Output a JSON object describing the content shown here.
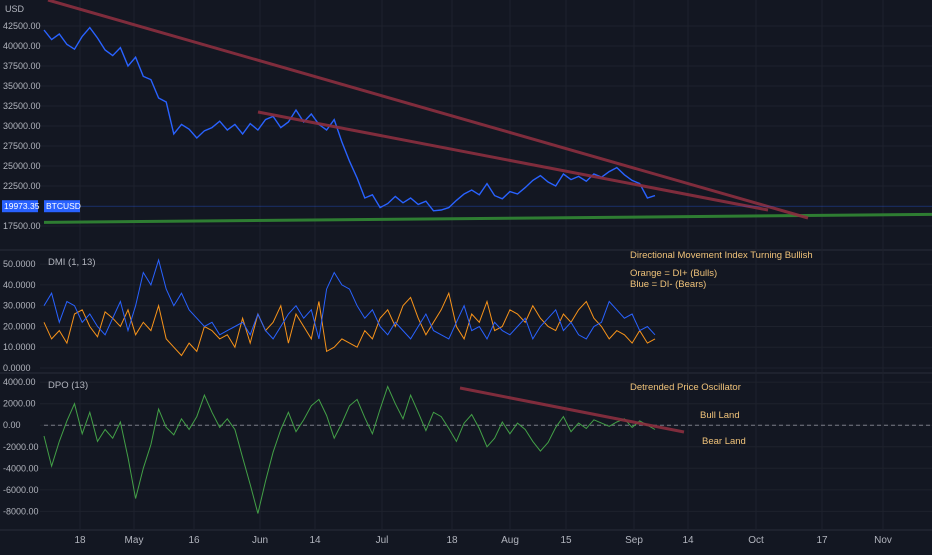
{
  "colors": {
    "background": "#131722",
    "grid": "#1e222d",
    "axis_text": "#b2b5be",
    "price_line": "#2962ff",
    "trendline": "#8c2f3f",
    "support": "#2e7d32",
    "di_plus": "#f7931a",
    "di_minus": "#2962ff",
    "dpo": "#43a047",
    "annotation": "#f0c37a",
    "price_tag": "#2962ff"
  },
  "time_axis": {
    "labels": [
      "18",
      "May",
      "16",
      "Jun",
      "14",
      "Jul",
      "18",
      "Aug",
      "15",
      "Sep",
      "14",
      "Oct",
      "17",
      "Nov"
    ]
  },
  "price_tag": {
    "value": "19973.35",
    "symbol": "BTCUSD"
  },
  "chart_data": [
    {
      "type": "line",
      "pane": "price",
      "ylabel": "USD",
      "y_ticks": [
        "42500.00",
        "40000.00",
        "37500.00",
        "35000.00",
        "32500.00",
        "30000.00",
        "27500.00",
        "25000.00",
        "22500.00",
        "17500.00"
      ],
      "ylim": [
        16500,
        44500
      ],
      "series": [
        {
          "name": "BTCUSD",
          "x": [
            0,
            2,
            4,
            6,
            8,
            10,
            12,
            14,
            16,
            18,
            20,
            22,
            24,
            26,
            28,
            30,
            32,
            34,
            36,
            38,
            40,
            42,
            44,
            46,
            48,
            50,
            52,
            54,
            56,
            58,
            60,
            62,
            64,
            66,
            68,
            70,
            72,
            74,
            76,
            78,
            80,
            82,
            84,
            86,
            88,
            90,
            92,
            94,
            96,
            98,
            100,
            102,
            104,
            106,
            108,
            110,
            112,
            114,
            116,
            118,
            120,
            122,
            124,
            126,
            128,
            130,
            132,
            134,
            136,
            138,
            140,
            142,
            144,
            146,
            148,
            150,
            152,
            154,
            156,
            158,
            160
          ],
          "values": [
            42000,
            40800,
            41500,
            40200,
            39600,
            41200,
            42300,
            41000,
            39500,
            38800,
            39800,
            37500,
            38600,
            36200,
            35800,
            33500,
            33000,
            29000,
            30200,
            29600,
            28500,
            29400,
            29800,
            30600,
            29500,
            30200,
            29000,
            30300,
            29500,
            30800,
            31200,
            29800,
            30500,
            32000,
            30500,
            31500,
            30200,
            29500,
            30800,
            28000,
            25600,
            23500,
            21000,
            21400,
            19800,
            20300,
            21200,
            20400,
            21000,
            20200,
            20600,
            19400,
            19500,
            19800,
            20700,
            21500,
            22000,
            21400,
            22800,
            21300,
            20900,
            21800,
            21500,
            22300,
            23200,
            23800,
            23000,
            22500,
            24000,
            23300,
            23700,
            23100,
            24000,
            23600,
            24300,
            24800,
            23900,
            23200,
            22800,
            21000,
            21300
          ],
          "x_note": "values continue to Sep"
        }
      ],
      "trendlines": [
        {
          "name": "",
          "from": [
            36400,
            44500
          ],
          "to": [
            20100,
            18300
          ]
        },
        {
          "name": "",
          "from": [
            32500,
            31500
          ],
          "to": [
            20100,
            19400
          ]
        }
      ],
      "support_level": 18200
    },
    {
      "type": "line",
      "pane": "dmi",
      "title": "DMI (1, 13)",
      "y_ticks": [
        "50.0000",
        "40.0000",
        "30.0000",
        "20.0000",
        "10.0000",
        "0.0000"
      ],
      "ylim": [
        0,
        52
      ],
      "annotations": [
        "Directional Movement Index Turning Bullish",
        "Orange = DI+ (Bulls)",
        "Blue = DI- (Bears)"
      ],
      "series": [
        {
          "name": "DI+",
          "color_key": "di_plus",
          "values": [
            22,
            14,
            18,
            12,
            26,
            28,
            20,
            15,
            27,
            24,
            20,
            28,
            16,
            22,
            18,
            30,
            14,
            10,
            6,
            12,
            8,
            20,
            18,
            14,
            16,
            10,
            24,
            12,
            26,
            18,
            22,
            30,
            12,
            26,
            20,
            14,
            32,
            8,
            10,
            14,
            12,
            10,
            18,
            14,
            24,
            28,
            20,
            30,
            34,
            24,
            16,
            22,
            28,
            36,
            20,
            14,
            26,
            22,
            32,
            18,
            20,
            28,
            26,
            22,
            30,
            24,
            20,
            18,
            26,
            22,
            28,
            32,
            24,
            20,
            14,
            18,
            16,
            12,
            18,
            12,
            14
          ]
        },
        {
          "name": "DI-",
          "color_key": "di_minus",
          "values": [
            30,
            36,
            22,
            32,
            30,
            22,
            26,
            20,
            16,
            24,
            32,
            18,
            30,
            46,
            40,
            52,
            38,
            30,
            36,
            28,
            24,
            20,
            22,
            16,
            18,
            20,
            22,
            16,
            26,
            18,
            14,
            20,
            26,
            30,
            24,
            28,
            14,
            38,
            46,
            40,
            38,
            30,
            24,
            28,
            20,
            16,
            22,
            18,
            14,
            20,
            26,
            18,
            16,
            14,
            22,
            30,
            18,
            20,
            14,
            22,
            18,
            16,
            20,
            24,
            14,
            20,
            24,
            28,
            18,
            22,
            16,
            14,
            20,
            22,
            32,
            28,
            24,
            26,
            18,
            20,
            16
          ]
        }
      ]
    },
    {
      "type": "line",
      "pane": "dpo",
      "title": "DPO (13)",
      "y_ticks": [
        "4000.00",
        "2000.00",
        "0.00",
        "-2000.00",
        "-4000.00",
        "-6000.00",
        "-8000.00"
      ],
      "ylim": [
        -8800,
        4200
      ],
      "annotations": [
        "Detrended Price Oscillator",
        "Bull Land",
        "Bear Land"
      ],
      "series": [
        {
          "name": "DPO",
          "color_key": "dpo",
          "values": [
            -1000,
            -3800,
            -1500,
            400,
            2000,
            -800,
            1200,
            -1500,
            -400,
            -1200,
            300,
            -3000,
            -6800,
            -4000,
            -1800,
            1500,
            -200,
            -900,
            600,
            -400,
            800,
            2800,
            1200,
            -200,
            600,
            -400,
            -3000,
            -5500,
            -8200,
            -5200,
            -2500,
            -400,
            1200,
            -600,
            500,
            1800,
            2400,
            900,
            -1200,
            200,
            1800,
            2400,
            700,
            -800,
            1500,
            3600,
            2000,
            600,
            2800,
            1200,
            -500,
            1200,
            800,
            -300,
            -1500,
            200,
            1000,
            -300,
            -2000,
            -1200,
            300,
            -800,
            200,
            -400,
            -1500,
            -2400,
            -1600,
            -200,
            800,
            -600,
            200,
            -300,
            500,
            200,
            -100,
            300,
            600,
            -200,
            400,
            0,
            -400
          ]
        }
      ],
      "trendline": {
        "from": [
          3500
        ],
        "to": [
          -600
        ]
      }
    }
  ]
}
